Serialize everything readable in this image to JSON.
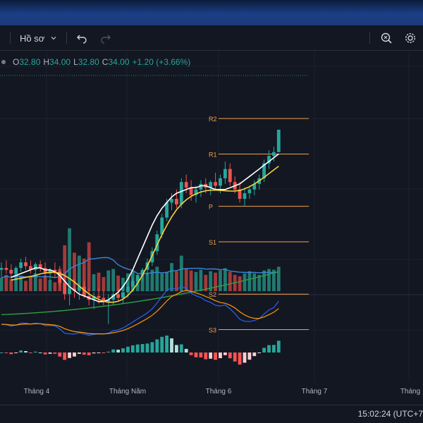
{
  "toolbar": {
    "template_label": "Hồ sơ",
    "chevron_icon": "chevron-down-icon",
    "undo_icon": "undo-icon",
    "redo_icon": "redo-icon",
    "search_icon": "search-settings-icon",
    "gear_icon": "gear-icon"
  },
  "ohlc": {
    "open_key": "O",
    "open": "32.80",
    "high_key": "H",
    "high": "34.00",
    "low_key": "L",
    "low": "32.80",
    "close_key": "C",
    "close": "34.00",
    "change": "+1.20 (+3.66%)"
  },
  "pivots": [
    {
      "label": "R2",
      "value": 34.6
    },
    {
      "label": "R1",
      "value": 32.7
    },
    {
      "label": "P",
      "value": 29.9
    },
    {
      "label": "S1",
      "value": 28.0
    },
    {
      "label": "S2",
      "value": 25.2
    },
    {
      "label": "S3",
      "value": 23.3
    }
  ],
  "time_axis": [
    "Tháng 4",
    "Tháng Năm",
    "Tháng 6",
    "Tháng 7",
    "Tháng"
  ],
  "status": {
    "time": "15:02:24 (UTC+7"
  },
  "colors": {
    "up": "#26a69a",
    "down": "#ef5350",
    "pivot": "#f0a04b",
    "ma_fast": "#ffffff",
    "ma_slow": "#f5d33a",
    "ma_long": "#2ea043",
    "vol_ma": "#3d86d8",
    "macd": "#2962ff",
    "signal": "#ff9800"
  },
  "chart_data": {
    "type": "candlestick",
    "candles": [
      [
        26.5,
        26.9,
        26.1,
        26.6
      ],
      [
        26.6,
        27.0,
        26.3,
        26.5
      ],
      [
        26.5,
        26.8,
        26.0,
        26.3
      ],
      [
        26.3,
        26.7,
        25.9,
        26.6
      ],
      [
        26.6,
        27.1,
        26.4,
        26.9
      ],
      [
        26.9,
        27.2,
        26.5,
        26.7
      ],
      [
        26.7,
        27.0,
        26.3,
        26.5
      ],
      [
        26.5,
        26.9,
        26.2,
        26.8
      ],
      [
        26.8,
        27.0,
        26.4,
        26.6
      ],
      [
        26.6,
        26.9,
        26.1,
        26.3
      ],
      [
        26.3,
        26.6,
        25.9,
        26.5
      ],
      [
        26.5,
        26.9,
        26.1,
        26.4
      ],
      [
        26.4,
        26.7,
        25.6,
        25.8
      ],
      [
        25.8,
        26.2,
        24.9,
        25.2
      ],
      [
        25.2,
        25.6,
        24.6,
        25.5
      ],
      [
        25.5,
        26.0,
        25.0,
        25.4
      ],
      [
        25.4,
        25.8,
        24.9,
        25.6
      ],
      [
        25.6,
        25.9,
        25.0,
        25.1
      ],
      [
        25.1,
        25.5,
        24.6,
        24.9
      ],
      [
        24.9,
        25.3,
        24.4,
        25.1
      ],
      [
        25.1,
        25.5,
        24.7,
        25.0
      ],
      [
        25.0,
        25.4,
        24.6,
        24.8
      ],
      [
        24.8,
        25.2,
        23.6,
        24.9
      ],
      [
        24.9,
        25.4,
        24.6,
        25.2
      ],
      [
        25.2,
        25.5,
        24.8,
        25.0
      ],
      [
        25.0,
        25.5,
        24.7,
        25.3
      ],
      [
        25.3,
        25.8,
        25.0,
        25.6
      ],
      [
        25.6,
        26.1,
        25.3,
        25.9
      ],
      [
        25.9,
        26.3,
        25.6,
        26.2
      ],
      [
        26.2,
        26.6,
        25.9,
        26.5
      ],
      [
        26.5,
        27.1,
        26.2,
        26.9
      ],
      [
        26.9,
        27.7,
        26.7,
        27.5
      ],
      [
        27.5,
        28.6,
        27.3,
        28.4
      ],
      [
        28.4,
        29.5,
        28.2,
        29.3
      ],
      [
        29.3,
        30.3,
        29.1,
        30.1
      ],
      [
        30.1,
        30.6,
        29.7,
        30.3
      ],
      [
        30.3,
        30.8,
        29.8,
        30.0
      ],
      [
        30.0,
        31.4,
        29.8,
        31.2
      ],
      [
        31.2,
        31.6,
        30.6,
        30.9
      ],
      [
        30.9,
        31.3,
        30.2,
        30.5
      ],
      [
        30.5,
        31.0,
        30.1,
        30.8
      ],
      [
        30.8,
        31.3,
        30.4,
        31.1
      ],
      [
        31.1,
        31.4,
        30.6,
        30.9
      ],
      [
        30.9,
        31.3,
        30.5,
        31.2
      ],
      [
        31.2,
        31.7,
        30.8,
        31.0
      ],
      [
        31.0,
        31.6,
        30.6,
        31.4
      ],
      [
        31.4,
        32.3,
        31.1,
        31.9
      ],
      [
        31.9,
        32.2,
        31.0,
        31.2
      ],
      [
        31.2,
        31.5,
        30.6,
        30.8
      ],
      [
        30.8,
        31.2,
        30.1,
        30.3
      ],
      [
        30.3,
        30.9,
        29.9,
        30.6
      ],
      [
        30.6,
        31.0,
        30.3,
        30.8
      ],
      [
        30.8,
        31.3,
        30.5,
        31.1
      ],
      [
        31.1,
        31.6,
        30.8,
        31.4
      ],
      [
        31.4,
        32.4,
        31.2,
        32.2
      ],
      [
        32.2,
        32.9,
        31.9,
        32.6
      ],
      [
        32.6,
        33.1,
        32.3,
        32.8
      ],
      [
        32.8,
        34.0,
        32.8,
        34.0
      ]
    ],
    "volume": [
      18,
      22,
      16,
      25,
      20,
      14,
      19,
      24,
      17,
      21,
      15,
      12,
      30,
      62,
      85,
      52,
      48,
      44,
      66,
      23,
      25,
      19,
      28,
      30,
      21,
      18,
      24,
      27,
      22,
      26,
      25,
      29,
      33,
      24,
      26,
      38,
      27,
      48,
      30,
      28,
      26,
      29,
      22,
      27,
      25,
      28,
      31,
      26,
      22,
      20,
      24,
      27,
      24,
      22,
      28,
      30,
      29,
      33
    ],
    "ma_fast": [
      26.1,
      26.2,
      26.3,
      26.4,
      26.5,
      26.6,
      26.6,
      26.5,
      26.5,
      26.4,
      26.2,
      25.9,
      25.6,
      25.4,
      25.2,
      25.1,
      25.0,
      24.9,
      24.8,
      24.8,
      24.9,
      25.1,
      25.3,
      25.6,
      26.0,
      26.5,
      27.1,
      27.7,
      28.3,
      28.9,
      29.4,
      29.8,
      30.1,
      30.4,
      30.6,
      30.7,
      30.8,
      30.9,
      30.9,
      31.0,
      31.0,
      30.9,
      30.8,
      30.8,
      30.8,
      30.9,
      31.0,
      31.1,
      31.3,
      31.5,
      31.7,
      31.9,
      32.1,
      32.3,
      32.5,
      32.7
    ]
  }
}
